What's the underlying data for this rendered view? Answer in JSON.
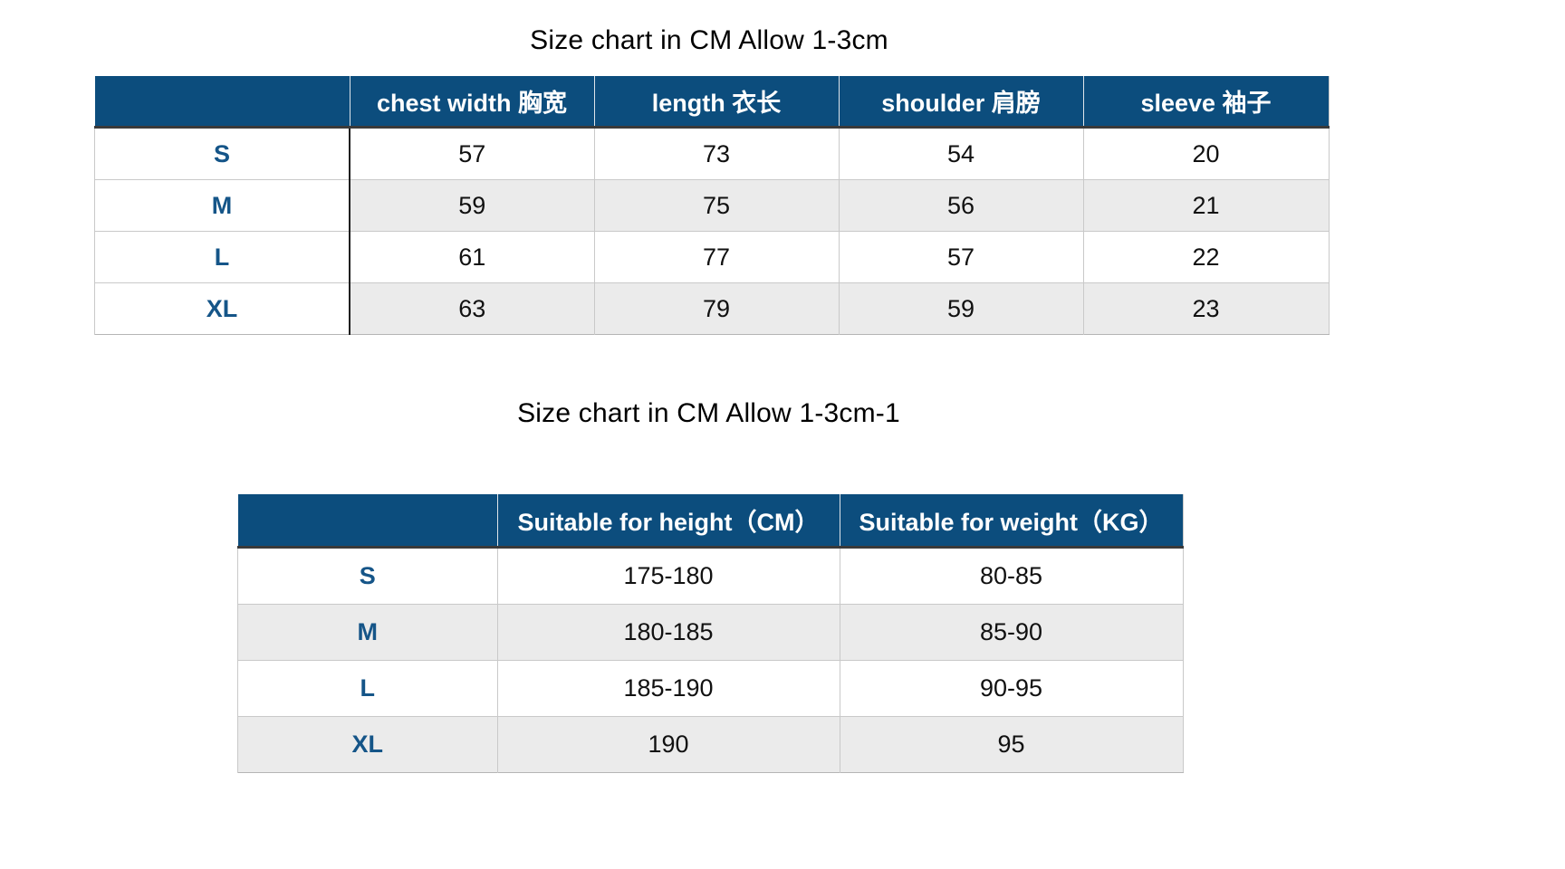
{
  "colors": {
    "header_bg": "#0c4d7d",
    "header_text": "#ffffff",
    "size_label_text": "#155588",
    "alt_row_bg": "#ebebeb",
    "header_bottom_border": "#3a3a3a",
    "label_column_divider": "#1f1f1f",
    "grid_line": "#c9c9c9",
    "title_text": "#000000",
    "page_bg": "#ffffff"
  },
  "chart_data": [
    {
      "type": "table",
      "title": "Size chart in CM Allow 1-3cm",
      "columns": [
        "",
        "chest width 胸宽",
        "length 衣长",
        "shoulder 肩膀",
        "sleeve 袖子"
      ],
      "rows": [
        [
          "S",
          57,
          73,
          54,
          20
        ],
        [
          "M",
          59,
          75,
          56,
          21
        ],
        [
          "L",
          61,
          77,
          57,
          22
        ],
        [
          "XL",
          63,
          79,
          59,
          23
        ]
      ],
      "layout": {
        "striped_columns_only": true,
        "stripe_rows": [
          "M",
          "XL"
        ],
        "legend": "none",
        "grid": "on"
      }
    },
    {
      "type": "table",
      "title": "Size chart in CM Allow 1-3cm-1",
      "columns": [
        "",
        "Suitable for height（CM）",
        "Suitable for weight（KG）"
      ],
      "rows": [
        [
          "S",
          "175-180",
          "80-85"
        ],
        [
          "M",
          "180-185",
          "85-90"
        ],
        [
          "L",
          "185-190",
          "90-95"
        ],
        [
          "XL",
          "190",
          "95"
        ]
      ],
      "layout": {
        "striped_columns_only": false,
        "stripe_rows": [
          "M",
          "XL"
        ],
        "legend": "none",
        "grid": "on"
      }
    }
  ]
}
